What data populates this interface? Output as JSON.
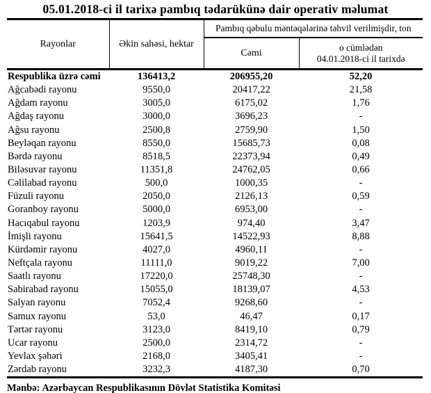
{
  "title": "05.01.2018-ci il tarixə pambıq tədarükünə dair operativ məlumat",
  "table": {
    "headers": {
      "rayonlar": "Rayonlar",
      "ekin_sahesi": "Əkin sahəsi, hektar",
      "group": "Pambıq qəbulu məntəqələrinə təhvil verilmişdir, ton",
      "cemi": "Cəmi",
      "o_cumleden_line1": "o cümlədən",
      "o_cumleden_line2": "04.01.2018-ci il tarixdə"
    },
    "rows": [
      {
        "name": "Respublika üzrə cəmi",
        "ekin": "136413,2",
        "cemi": "206955,20",
        "tarixde": "52,20",
        "total": true
      },
      {
        "name": "Ağcabədi rayonu",
        "ekin": "9550,0",
        "cemi": "20417,22",
        "tarixde": "21,58",
        "total": false
      },
      {
        "name": "Ağdam rayonu",
        "ekin": "3005,0",
        "cemi": "6175,02",
        "tarixde": "1,76",
        "total": false
      },
      {
        "name": "Ağdaş rayonu",
        "ekin": "3000,0",
        "cemi": "3696,23",
        "tarixde": "-",
        "total": false
      },
      {
        "name": "Ağsu rayonu",
        "ekin": "2500,8",
        "cemi": "2759,90",
        "tarixde": "1,50",
        "total": false
      },
      {
        "name": "Beyləqan rayonu",
        "ekin": "8550,0",
        "cemi": "15685,73",
        "tarixde": "0,08",
        "total": false
      },
      {
        "name": "Bərdə rayonu",
        "ekin": "8518,5",
        "cemi": "22373,94",
        "tarixde": "0,49",
        "total": false
      },
      {
        "name": "Biləsuvar rayonu",
        "ekin": "11351,8",
        "cemi": "24762,05",
        "tarixde": "0,66",
        "total": false
      },
      {
        "name": "Cəlilabad rayonu",
        "ekin": "500,0",
        "cemi": "1000,35",
        "tarixde": "-",
        "total": false
      },
      {
        "name": "Füzuli rayonu",
        "ekin": "2050,0",
        "cemi": "2126,13",
        "tarixde": "0,59",
        "total": false
      },
      {
        "name": "Goranboy rayonu",
        "ekin": "5000,0",
        "cemi": "6953,00",
        "tarixde": "-",
        "total": false
      },
      {
        "name": "Hacıqabul rayonu",
        "ekin": "1203,9",
        "cemi": "974,40",
        "tarixde": "3,47",
        "total": false
      },
      {
        "name": "İmişli rayonu",
        "ekin": "15641,5",
        "cemi": "14522,93",
        "tarixde": "8,88",
        "total": false
      },
      {
        "name": "Kürdəmir rayonu",
        "ekin": "4027,0",
        "cemi": "4960,11",
        "tarixde": "-",
        "total": false
      },
      {
        "name": "Neftçala rayonu",
        "ekin": "11111,0",
        "cemi": "9019,22",
        "tarixde": "7,00",
        "total": false
      },
      {
        "name": "Saatlı rayonu",
        "ekin": "17220,0",
        "cemi": "25748,30",
        "tarixde": "-",
        "total": false
      },
      {
        "name": "Sabirabad rayonu",
        "ekin": "15055,0",
        "cemi": "18139,07",
        "tarixde": "4,53",
        "total": false
      },
      {
        "name": "Salyan rayonu",
        "ekin": "7052,4",
        "cemi": "9268,60",
        "tarixde": "-",
        "total": false
      },
      {
        "name": "Samux rayonu",
        "ekin": "53,0",
        "cemi": "46,47",
        "tarixde": "0,17",
        "total": false
      },
      {
        "name": "Tərtər rayonu",
        "ekin": "3123,0",
        "cemi": "8419,10",
        "tarixde": "0,79",
        "total": false
      },
      {
        "name": "Ucar rayonu",
        "ekin": "2500,0",
        "cemi": "2314,72",
        "tarixde": "-",
        "total": false
      },
      {
        "name": "Yevlax şəhəri",
        "ekin": "2168,0",
        "cemi": "3405,41",
        "tarixde": "-",
        "total": false
      },
      {
        "name": "Zərdab rayonu",
        "ekin": "3232,3",
        "cemi": "4187,30",
        "tarixde": "0,70",
        "total": false
      }
    ]
  },
  "footer": "Mənbə: Azərbaycan Respublikasının Dövlət Statistika Komitəsi",
  "colors": {
    "text": "#000000",
    "background": "#ffffff",
    "border": "#000000"
  }
}
